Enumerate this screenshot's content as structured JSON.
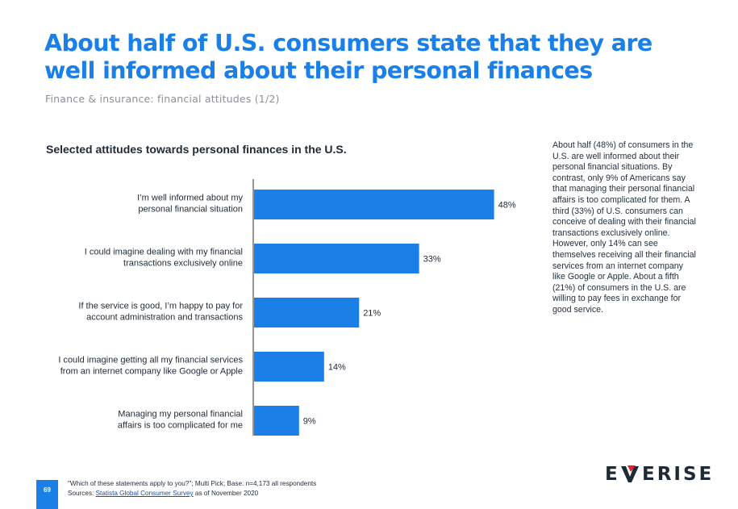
{
  "header": {
    "title": "About half of U.S. consumers state that they are well informed about their personal finances",
    "subtitle": "Finance & insurance: financial attitudes (1/2)"
  },
  "chart_data": {
    "type": "bar",
    "orientation": "horizontal",
    "title": "Selected attitudes towards personal finances in the U.S.",
    "categories": [
      [
        "I’m well informed about my",
        "personal financial situation"
      ],
      [
        "I could imagine dealing with my financial",
        "transactions exclusively online"
      ],
      [
        "If the service is good, I’m happy to pay for",
        "account administration and transactions"
      ],
      [
        "I could imagine getting all my financial services",
        "from an internet company like Google or Apple"
      ],
      [
        "Managing my personal financial",
        "affairs is too complicated for me"
      ]
    ],
    "values": [
      48,
      33,
      21,
      14,
      9
    ],
    "value_labels": [
      "48%",
      "33%",
      "21%",
      "14%",
      "9%"
    ],
    "unit": "%",
    "xlim": [
      0,
      50
    ],
    "bar_color": "#1a7fe6",
    "grid": false,
    "legend": "none"
  },
  "description": "About half (48%) of consumers in the U.S. are well informed about their personal  financial situations. By contrast,  only  9% of Americans say that managing their personal financial affairs is too complicated  for them.  A third (33%) of U.S. consumers can conceive of dealing with their financial transactions exclusively online. However, only 14% can see themselves receiving all their financial services from an internet company like Google or Apple. About a fifth (21%) of consumers in the U.S. are willing to pay fees in exchange for good service.",
  "footer": {
    "page_number": "69",
    "note": "\"Which of these statements apply to you?\"; Multi Pick; Base: n=4,173 all respondents",
    "sources_prefix": "Sources: ",
    "sources_link": "Statista Global Consumer Survey",
    "sources_suffix": " as of November 2020"
  },
  "logo": {
    "prefix": "E",
    "v_letter": "V",
    "suffix": "ERISE",
    "accent_color": "#e8202a"
  },
  "colors": {
    "title": "#1a7fe6",
    "bar": "#1a7fe6",
    "text": "#1f2a36"
  }
}
